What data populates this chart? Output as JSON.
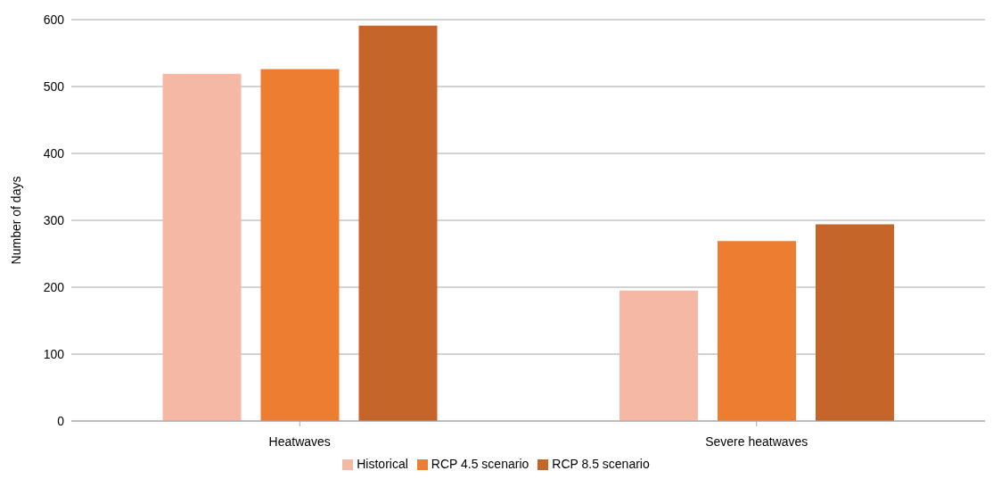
{
  "chart_data": {
    "type": "bar",
    "ylabel": "Number of days",
    "categories": [
      "Heatwaves",
      "Severe heatwaves"
    ],
    "series": [
      {
        "name": "Historical",
        "color": "#f4b8a5",
        "values": [
          519,
          195
        ]
      },
      {
        "name": "RCP 4.5 scenario",
        "color": "#ed7d31",
        "values": [
          526,
          269
        ]
      },
      {
        "name": "RCP 8.5 scenario",
        "color": "#c5652a",
        "values": [
          591,
          294
        ]
      }
    ],
    "ylim": [
      0,
      600
    ],
    "yticks": [
      0,
      100,
      200,
      300,
      400,
      500,
      600
    ],
    "grid": "y",
    "legend": "bottom"
  }
}
